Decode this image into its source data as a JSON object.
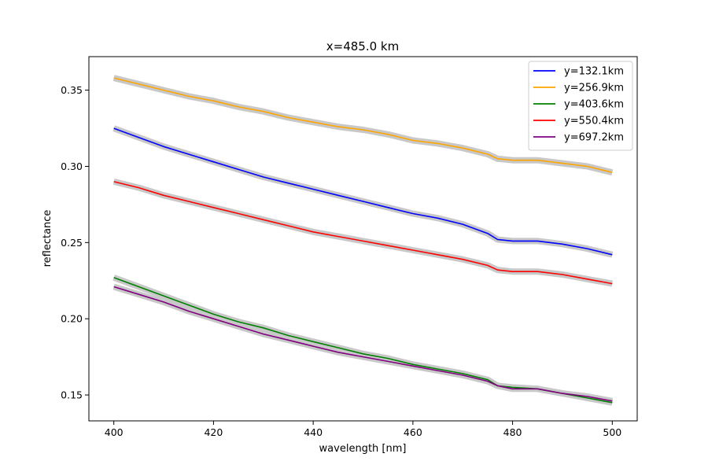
{
  "chart_data": {
    "type": "line",
    "title": "x=485.0 km",
    "xlabel": "wavelength [nm]",
    "ylabel": "reflectance",
    "xlim": [
      395,
      505
    ],
    "ylim": [
      0.133,
      0.372
    ],
    "xticks": [
      400,
      420,
      440,
      460,
      480,
      500
    ],
    "xtick_labels": [
      "400",
      "420",
      "440",
      "460",
      "480",
      "500"
    ],
    "yticks": [
      0.15,
      0.2,
      0.25,
      0.3,
      0.35
    ],
    "ytick_labels": [
      "0.15",
      "0.20",
      "0.25",
      "0.30",
      "0.35"
    ],
    "grid": false,
    "legend_position": "top-right",
    "band_color": "#c8c8c8",
    "series": [
      {
        "name": "y=132.1km",
        "color": "#0000ff",
        "x": [
          400,
          405,
          410,
          415,
          420,
          425,
          430,
          435,
          440,
          445,
          450,
          455,
          460,
          465,
          470,
          475,
          477,
          480,
          485,
          490,
          495,
          500
        ],
        "y": [
          0.325,
          0.319,
          0.313,
          0.308,
          0.303,
          0.298,
          0.293,
          0.289,
          0.285,
          0.281,
          0.277,
          0.273,
          0.269,
          0.266,
          0.262,
          0.256,
          0.252,
          0.251,
          0.251,
          0.249,
          0.246,
          0.242
        ]
      },
      {
        "name": "y=256.9km",
        "color": "#ffa500",
        "x": [
          400,
          405,
          410,
          415,
          420,
          425,
          430,
          435,
          440,
          445,
          450,
          455,
          460,
          465,
          470,
          475,
          477,
          480,
          485,
          490,
          495,
          500
        ],
        "y": [
          0.358,
          0.354,
          0.35,
          0.346,
          0.343,
          0.339,
          0.336,
          0.332,
          0.329,
          0.326,
          0.324,
          0.321,
          0.317,
          0.315,
          0.312,
          0.308,
          0.305,
          0.304,
          0.304,
          0.302,
          0.3,
          0.296
        ]
      },
      {
        "name": "y=403.6km",
        "color": "#008000",
        "x": [
          400,
          405,
          410,
          415,
          420,
          425,
          430,
          435,
          440,
          445,
          450,
          455,
          460,
          465,
          470,
          475,
          477,
          480,
          485,
          490,
          495,
          500
        ],
        "y": [
          0.227,
          0.221,
          0.215,
          0.209,
          0.203,
          0.198,
          0.194,
          0.189,
          0.185,
          0.181,
          0.177,
          0.174,
          0.17,
          0.167,
          0.164,
          0.16,
          0.156,
          0.155,
          0.154,
          0.151,
          0.148,
          0.145
        ]
      },
      {
        "name": "y=550.4km",
        "color": "#ff0000",
        "x": [
          400,
          405,
          410,
          415,
          420,
          425,
          430,
          435,
          440,
          445,
          450,
          455,
          460,
          465,
          470,
          475,
          477,
          480,
          485,
          490,
          495,
          500
        ],
        "y": [
          0.29,
          0.286,
          0.281,
          0.277,
          0.273,
          0.269,
          0.265,
          0.261,
          0.257,
          0.254,
          0.251,
          0.248,
          0.245,
          0.242,
          0.239,
          0.235,
          0.232,
          0.231,
          0.231,
          0.229,
          0.226,
          0.223
        ]
      },
      {
        "name": "y=697.2km",
        "color": "#800080",
        "x": [
          400,
          405,
          410,
          415,
          420,
          425,
          430,
          435,
          440,
          445,
          450,
          455,
          460,
          465,
          470,
          475,
          477,
          480,
          485,
          490,
          495,
          500
        ],
        "y": [
          0.221,
          0.216,
          0.211,
          0.205,
          0.2,
          0.195,
          0.19,
          0.186,
          0.182,
          0.178,
          0.175,
          0.172,
          0.169,
          0.166,
          0.163,
          0.159,
          0.156,
          0.154,
          0.154,
          0.151,
          0.149,
          0.146
        ]
      }
    ]
  }
}
